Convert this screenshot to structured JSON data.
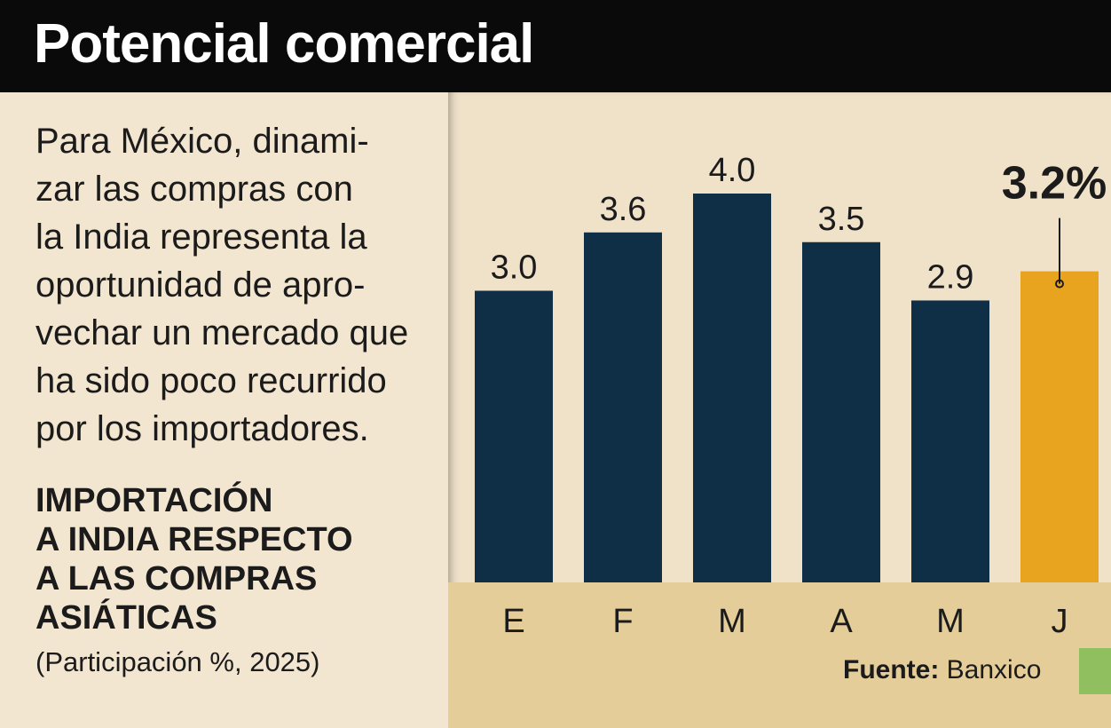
{
  "header": {
    "title": "Potencial comercial"
  },
  "intro_text": "Para México, dinami-\nzar las compras con\nla India representa la\noportunidad de apro-\nvechar un mercado que\nha sido poco recurrido\npor los importadores.",
  "source": {
    "label": "Fuente:",
    "value": "Banxico"
  },
  "colors": {
    "bar": "#0e2f45",
    "highlight": "#e8a31f",
    "axis_band": "#e4cd98",
    "header_bg": "#0a0a0a"
  },
  "chart_data": {
    "type": "bar",
    "title": "IMPORTACIÓN\nA INDIA RESPECTO\nA LAS COMPRAS\nASIÁTICAS",
    "subtitle": "(Participación %, 2025)",
    "categories": [
      "E",
      "F",
      "M",
      "A",
      "M",
      "J"
    ],
    "values": [
      3.0,
      3.6,
      4.0,
      3.5,
      2.9,
      3.2
    ],
    "value_labels": [
      "3.0",
      "3.6",
      "4.0",
      "3.5",
      "2.9",
      "3.2%"
    ],
    "highlight_index": 5,
    "ylim": [
      0,
      4.0
    ],
    "xlabel": "",
    "ylabel": "",
    "grid": false,
    "legend": "none"
  }
}
